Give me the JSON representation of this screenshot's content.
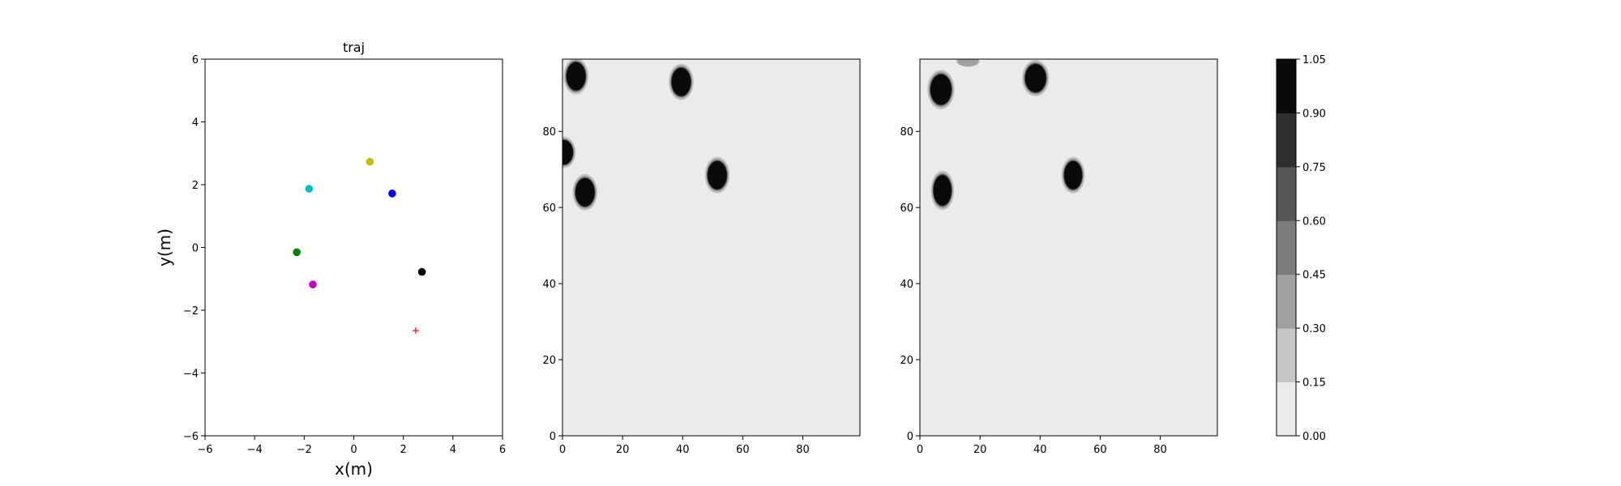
{
  "chart_data": [
    {
      "type": "scatter",
      "title": "traj",
      "xlabel": "x(m)",
      "ylabel": "y(m)",
      "xlim": [
        -6,
        6
      ],
      "ylim": [
        -6,
        6
      ],
      "xticks": [
        "−6",
        "−4",
        "−2",
        "0",
        "2",
        "4",
        "6"
      ],
      "yticks": [
        "−6",
        "−4",
        "−2",
        "0",
        "2",
        "4",
        "6"
      ],
      "grid": false,
      "points": [
        {
          "x": 0.65,
          "y": 2.73,
          "color": "#bfbf00",
          "marker": "circle"
        },
        {
          "x": -1.8,
          "y": 1.87,
          "color": "#00bfbf",
          "marker": "circle"
        },
        {
          "x": 1.55,
          "y": 1.72,
          "color": "#0000ff",
          "marker": "circle"
        },
        {
          "x": -2.3,
          "y": -0.15,
          "color": "#008000",
          "marker": "circle"
        },
        {
          "x": 2.75,
          "y": -0.78,
          "color": "#000000",
          "marker": "circle"
        },
        {
          "x": -1.65,
          "y": -1.18,
          "color": "#bf00bf",
          "marker": "circle"
        },
        {
          "x": 2.5,
          "y": -2.65,
          "color": "#ff0000",
          "marker": "plus"
        }
      ]
    },
    {
      "type": "heatmap",
      "title": "",
      "xlim": [
        0,
        99
      ],
      "ylim": [
        0,
        99
      ],
      "xticks": [
        "0",
        "20",
        "40",
        "60",
        "80"
      ],
      "yticks": [
        "0",
        "20",
        "40",
        "60",
        "80"
      ],
      "background_value": 0.05,
      "blobs": [
        {
          "cx": 4.5,
          "cy": 94.5,
          "rx": 3.2,
          "ry": 3.7,
          "value": 1.0
        },
        {
          "cx": 39.5,
          "cy": 93.0,
          "rx": 3.2,
          "ry": 3.7,
          "value": 1.0
        },
        {
          "cx": 0.5,
          "cy": 74.5,
          "rx": 3.0,
          "ry": 3.2,
          "value": 1.0
        },
        {
          "cx": 7.5,
          "cy": 64.0,
          "rx": 3.2,
          "ry": 3.7,
          "value": 1.0
        },
        {
          "cx": 51.5,
          "cy": 68.5,
          "rx": 3.2,
          "ry": 3.7,
          "value": 1.0
        }
      ]
    },
    {
      "type": "heatmap",
      "title": "",
      "xlim": [
        0,
        99
      ],
      "ylim": [
        0,
        99
      ],
      "xticks": [
        "0",
        "20",
        "40",
        "60",
        "80"
      ],
      "yticks": [
        "0",
        "20",
        "40",
        "60",
        "80"
      ],
      "background_value": 0.05,
      "blobs": [
        {
          "cx": 16.0,
          "cy": 98.5,
          "rx": 3.0,
          "ry": 1.2,
          "value": 0.35
        },
        {
          "cx": 7.0,
          "cy": 91.0,
          "rx": 3.5,
          "ry": 4.0,
          "value": 1.0
        },
        {
          "cx": 38.5,
          "cy": 94.0,
          "rx": 3.5,
          "ry": 3.7,
          "value": 1.0
        },
        {
          "cx": 7.5,
          "cy": 64.5,
          "rx": 3.0,
          "ry": 4.0,
          "value": 1.0
        },
        {
          "cx": 51.0,
          "cy": 68.5,
          "rx": 3.0,
          "ry": 3.7,
          "value": 1.0
        }
      ]
    },
    {
      "type": "colorbar",
      "levels": [
        "0.00",
        "0.15",
        "0.30",
        "0.45",
        "0.60",
        "0.75",
        "0.90",
        "1.05"
      ],
      "colors": [
        "#ebebeb",
        "#c6c6c6",
        "#a0a0a0",
        "#7b7b7b",
        "#555555",
        "#2f2f2f",
        "#0a0a0a"
      ]
    }
  ]
}
